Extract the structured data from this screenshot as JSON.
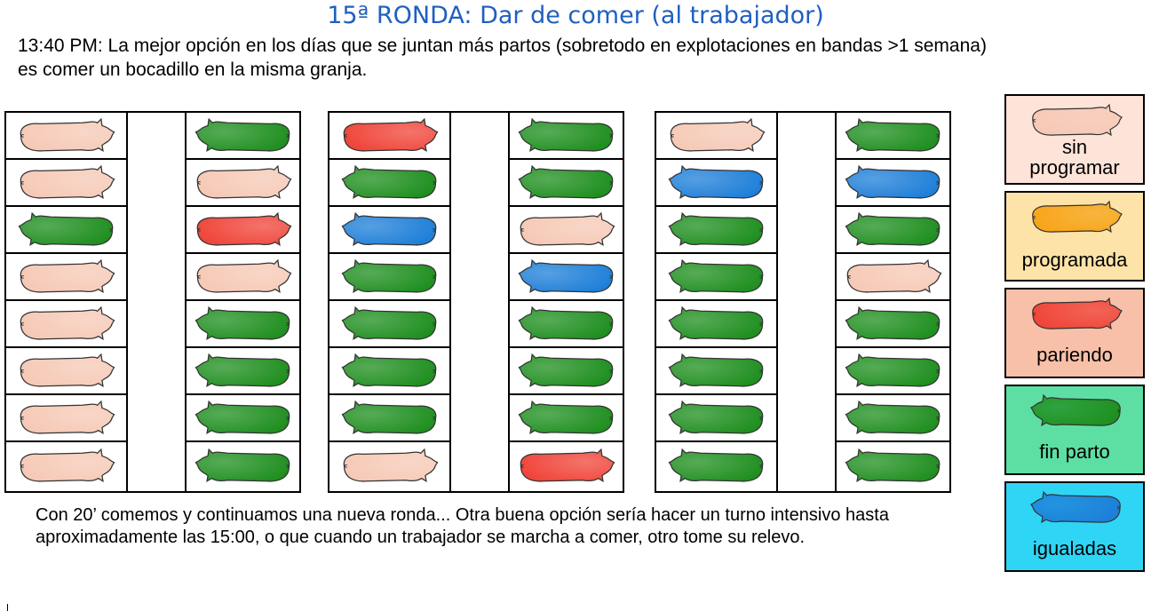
{
  "title": "15ª RONDA: Dar de comer (al trabajador)",
  "intro": "13:40 PM: La mejor opción en los días que se juntan más partos (sobretodo en explotaciones en bandas >1 semana) es comer un bocadillo en la misma granja.",
  "footer": "Con 20’ comemos y continuamos una nueva ronda... Otra buena opción sería hacer un turno intensivo hasta aproximadamente las 15:00, o que cuando un trabajador se marcha a comer, otro tome su relevo.",
  "colors": {
    "sin_programar": "#f6c9b6",
    "programada": "#f7a51a",
    "pariendo": "#f0453a",
    "fin_parto": "#1f8f1f",
    "igualadas": "#1e7fd8"
  },
  "legend": [
    {
      "state": "sin_programar",
      "label_line1": "sin",
      "label_line2": "programar",
      "bg": "#fde3d8"
    },
    {
      "state": "programada",
      "label_line1": "programada",
      "label_line2": "",
      "bg": "#fde3a8"
    },
    {
      "state": "pariendo",
      "label_line1": "pariendo",
      "label_line2": "",
      "bg": "#f8c0a8"
    },
    {
      "state": "fin_parto",
      "label_line1": "fin parto",
      "label_line2": "",
      "bg": "#5ddfa4"
    },
    {
      "state": "igualadas",
      "label_line1": "igualadas",
      "label_line2": "",
      "bg": "#2fd5f5"
    }
  ],
  "panels": [
    {
      "left": [
        "sin_programar",
        "sin_programar",
        "fin_parto",
        "sin_programar",
        "sin_programar",
        "sin_programar",
        "sin_programar",
        "sin_programar"
      ],
      "right": [
        "fin_parto",
        "sin_programar",
        "pariendo",
        "sin_programar",
        "fin_parto",
        "fin_parto",
        "fin_parto",
        "fin_parto"
      ]
    },
    {
      "left": [
        "pariendo",
        "fin_parto",
        "igualadas",
        "fin_parto",
        "fin_parto",
        "fin_parto",
        "fin_parto",
        "sin_programar"
      ],
      "right": [
        "fin_parto",
        "fin_parto",
        "sin_programar",
        "igualadas",
        "fin_parto",
        "fin_parto",
        "fin_parto",
        "pariendo"
      ]
    },
    {
      "left": [
        "sin_programar",
        "igualadas",
        "fin_parto",
        "fin_parto",
        "fin_parto",
        "fin_parto",
        "fin_parto",
        "fin_parto"
      ],
      "right": [
        "fin_parto",
        "igualadas",
        "fin_parto",
        "sin_programar",
        "fin_parto",
        "fin_parto",
        "fin_parto",
        "fin_parto"
      ]
    }
  ]
}
